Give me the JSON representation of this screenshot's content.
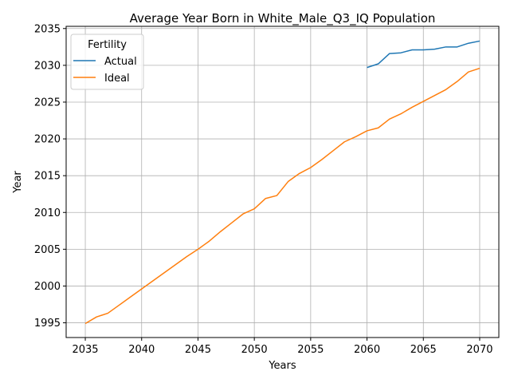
{
  "chart_data": {
    "type": "line",
    "title": "Average Year Born in White_Male_Q3_IQ Population",
    "xlabel": "Years",
    "ylabel": "Year",
    "xlim": [
      2033.3,
      2071.7
    ],
    "ylim": [
      1993.0,
      2035.3
    ],
    "xticks": [
      2035,
      2040,
      2045,
      2050,
      2055,
      2060,
      2065,
      2070
    ],
    "yticks": [
      1995,
      2000,
      2005,
      2010,
      2015,
      2020,
      2025,
      2030,
      2035
    ],
    "grid": true,
    "legend": {
      "title": "Fertility",
      "placement": "top-left"
    },
    "series": [
      {
        "name": "Actual",
        "color": "#1f77b4",
        "x": [
          2060,
          2061,
          2062,
          2063,
          2064,
          2065,
          2066,
          2067,
          2068,
          2069,
          2070
        ],
        "y": [
          2029.7,
          2030.2,
          2031.6,
          2031.7,
          2032.1,
          2032.1,
          2032.2,
          2032.5,
          2032.5,
          2033.0,
          2033.3
        ]
      },
      {
        "name": "Ideal",
        "color": "#ff7f0e",
        "x": [
          2035,
          2036,
          2037,
          2038,
          2039,
          2040,
          2041,
          2042,
          2043,
          2044,
          2045,
          2046,
          2047,
          2048,
          2049,
          2050,
          2051,
          2052,
          2053,
          2054,
          2055,
          2056,
          2057,
          2058,
          2059,
          2060,
          2061,
          2062,
          2063,
          2064,
          2065,
          2066,
          2067,
          2068,
          2069,
          2070
        ],
        "y": [
          1994.9,
          1995.8,
          1996.3,
          1997.4,
          1998.5,
          1999.6,
          2000.7,
          2001.8,
          2002.9,
          2004.0,
          2005.0,
          2006.1,
          2007.4,
          2008.6,
          2009.8,
          2010.5,
          2011.9,
          2012.3,
          2014.2,
          2015.3,
          2016.1,
          2017.2,
          2018.4,
          2019.6,
          2020.3,
          2021.1,
          2021.5,
          2022.7,
          2023.4,
          2024.3,
          2025.1,
          2025.9,
          2026.7,
          2027.8,
          2029.1,
          2029.6
        ]
      }
    ]
  }
}
